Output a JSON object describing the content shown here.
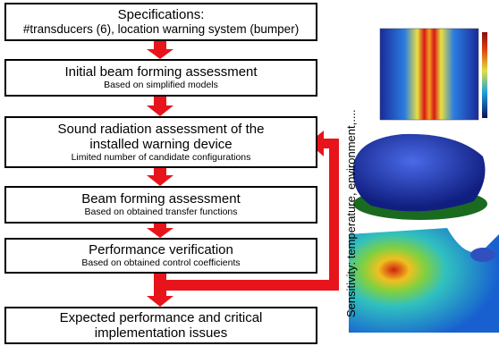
{
  "steps": [
    {
      "title": "Specifications:",
      "subtitle": "#transducers (6), location warning system (bumper)"
    },
    {
      "title": "Initial beam forming assessment",
      "subtitle": "Based on simplified models"
    },
    {
      "title": "Sound radiation assessment of the installed warning device",
      "subtitle": "Limited number of candidate configurations"
    },
    {
      "title": "Beam forming assessment",
      "subtitle": "Based on obtained transfer functions"
    },
    {
      "title": "Performance verification",
      "subtitle": "Based on obtained control coefficients"
    },
    {
      "title": "Expected performance and critical implementation issues"
    }
  ],
  "feedback_label": "Sensitivity: temperature, environment,...."
}
